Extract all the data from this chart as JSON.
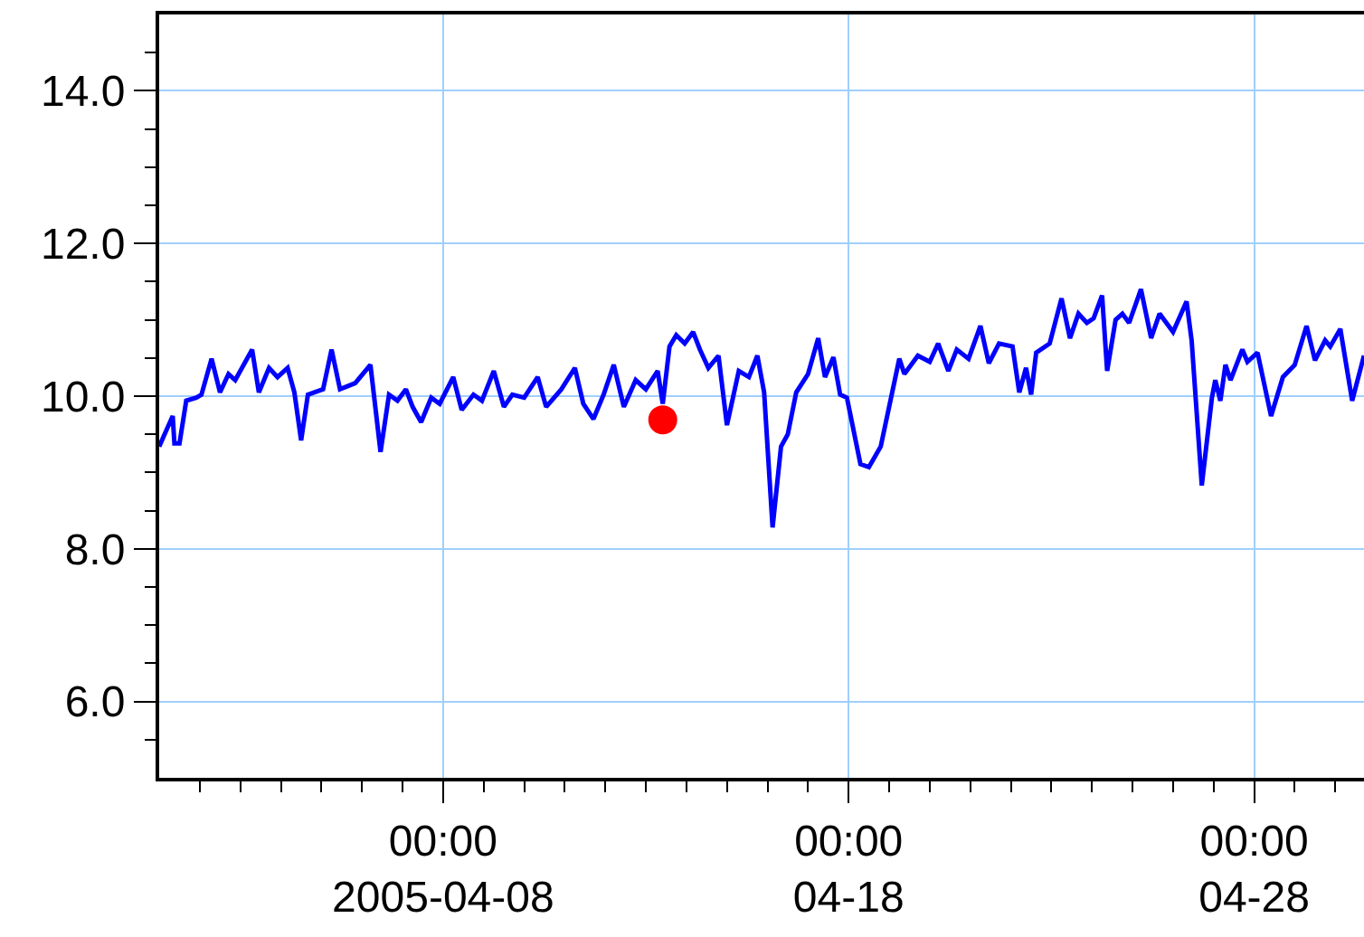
{
  "chart_data": {
    "type": "line",
    "xlim": [
      "2005-04-01T00:00",
      "2005-04-30T17:00"
    ],
    "ylim": [
      5.0,
      15.0
    ],
    "xticks": [
      {
        "value": "2005-04-02",
        "label": null
      },
      {
        "value": "2005-04-03",
        "label": null
      },
      {
        "value": "2005-04-04",
        "label": null
      },
      {
        "value": "2005-04-05",
        "label": null
      },
      {
        "value": "2005-04-06",
        "label": null
      },
      {
        "value": "2005-04-07",
        "label": null
      },
      {
        "value": "2005-04-08",
        "label": "00:00\n2005-04-08"
      },
      {
        "value": "2005-04-09",
        "label": null
      },
      {
        "value": "2005-04-10",
        "label": null
      },
      {
        "value": "2005-04-11",
        "label": null
      },
      {
        "value": "2005-04-12",
        "label": null
      },
      {
        "value": "2005-04-13",
        "label": null
      },
      {
        "value": "2005-04-14",
        "label": null
      },
      {
        "value": "2005-04-15",
        "label": null
      },
      {
        "value": "2005-04-16",
        "label": null
      },
      {
        "value": "2005-04-17",
        "label": null
      },
      {
        "value": "2005-04-18",
        "label": "00:00\n04-18"
      },
      {
        "value": "2005-04-19",
        "label": null
      },
      {
        "value": "2005-04-20",
        "label": null
      },
      {
        "value": "2005-04-21",
        "label": null
      },
      {
        "value": "2005-04-22",
        "label": null
      },
      {
        "value": "2005-04-23",
        "label": null
      },
      {
        "value": "2005-04-24",
        "label": null
      },
      {
        "value": "2005-04-25",
        "label": null
      },
      {
        "value": "2005-04-26",
        "label": null
      },
      {
        "value": "2005-04-27",
        "label": null
      },
      {
        "value": "2005-04-28",
        "label": "00:00\n04-28"
      },
      {
        "value": "2005-04-29",
        "label": null
      },
      {
        "value": "2005-04-30",
        "label": null
      }
    ],
    "yticks": [
      {
        "value": 5.5,
        "label": null
      },
      {
        "value": 6.0,
        "label": "6.0"
      },
      {
        "value": 6.5,
        "label": null
      },
      {
        "value": 7.0,
        "label": null
      },
      {
        "value": 7.5,
        "label": null
      },
      {
        "value": 8.0,
        "label": "8.0"
      },
      {
        "value": 8.5,
        "label": null
      },
      {
        "value": 9.0,
        "label": null
      },
      {
        "value": 9.5,
        "label": null
      },
      {
        "value": 10.0,
        "label": "10.0"
      },
      {
        "value": 10.5,
        "label": null
      },
      {
        "value": 11.0,
        "label": null
      },
      {
        "value": 11.5,
        "label": null
      },
      {
        "value": 12.0,
        "label": "12.0"
      },
      {
        "value": 12.5,
        "label": null
      },
      {
        "value": 13.0,
        "label": null
      },
      {
        "value": 13.5,
        "label": null
      },
      {
        "value": 14.0,
        "label": "14.0"
      },
      {
        "value": 14.5,
        "label": null
      }
    ],
    "grid": true,
    "series": [
      {
        "color": "#0000ff",
        "marker": "none",
        "line_style": "solid",
        "x": [
          "2005-04-01T00:00",
          "2005-04-01T04:00",
          "2005-04-01T08:00",
          "2005-04-01T09:00",
          "2005-04-01T12:00",
          "2005-04-01T16:00",
          "2005-04-01T22:00",
          "2005-04-02T01:00",
          "2005-04-02T07:00",
          "2005-04-02T12:00",
          "2005-04-02T17:00",
          "2005-04-02T21:00",
          "2005-04-03T07:00",
          "2005-04-03T11:00",
          "2005-04-03T17:00",
          "2005-04-03T22:00",
          "2005-04-04T04:00",
          "2005-04-04T08:00",
          "2005-04-04T12:00",
          "2005-04-04T16:00",
          "2005-04-05T01:00",
          "2005-04-05T06:00",
          "2005-04-05T11:00",
          "2005-04-05T20:00",
          "2005-04-06T05:00",
          "2005-04-06T11:00",
          "2005-04-06T16:00",
          "2005-04-06T21:00",
          "2005-04-07T02:00",
          "2005-04-07T06:00",
          "2005-04-07T11:00",
          "2005-04-07T17:00",
          "2005-04-07T22:00",
          "2005-04-08T06:00",
          "2005-04-08T11:00",
          "2005-04-08T18:00",
          "2005-04-08T23:00",
          "2005-04-09T06:00",
          "2005-04-09T12:00",
          "2005-04-09T17:00",
          "2005-04-10T00:00",
          "2005-04-10T08:00",
          "2005-04-10T13:00",
          "2005-04-10T22:00",
          "2005-04-11T06:00",
          "2005-04-11T11:00",
          "2005-04-11T17:00",
          "2005-04-11T23:00",
          "2005-04-12T05:00",
          "2005-04-12T11:00",
          "2005-04-12T18:00",
          "2005-04-13T00:00",
          "2005-04-13T07:00",
          "2005-04-13T10:00",
          "2005-04-13T14:00",
          "2005-04-13T18:00",
          "2005-04-13T23:00",
          "2005-04-14T04:00",
          "2005-04-14T08:00",
          "2005-04-14T13:00",
          "2005-04-14T19:00",
          "2005-04-15T00:00",
          "2005-04-15T07:00",
          "2005-04-15T13:00",
          "2005-04-15T18:00",
          "2005-04-15T22:00",
          "2005-04-16T03:00",
          "2005-04-16T08:00",
          "2005-04-16T12:00",
          "2005-04-16T17:00",
          "2005-04-17T00:00",
          "2005-04-17T06:00",
          "2005-04-17T10:00",
          "2005-04-17T15:00",
          "2005-04-17T19:00",
          "2005-04-17T23:00",
          "2005-04-18T07:00",
          "2005-04-18T12:00",
          "2005-04-18T19:00",
          "2005-04-19T06:00",
          "2005-04-19T09:00",
          "2005-04-19T17:00",
          "2005-04-20T00:00",
          "2005-04-20T05:00",
          "2005-04-20T11:00",
          "2005-04-20T16:00",
          "2005-04-20T23:00",
          "2005-04-21T06:00",
          "2005-04-21T11:00",
          "2005-04-21T17:00",
          "2005-04-22T01:00",
          "2005-04-22T05:00",
          "2005-04-22T09:00",
          "2005-04-22T12:00",
          "2005-04-22T15:00",
          "2005-04-22T23:00",
          "2005-04-23T06:00",
          "2005-04-23T11:00",
          "2005-04-23T16:00",
          "2005-04-23T21:00",
          "2005-04-24T01:00",
          "2005-04-24T06:00",
          "2005-04-24T09:00",
          "2005-04-24T14:00",
          "2005-04-24T18:00",
          "2005-04-24T22:00",
          "2005-04-25T05:00",
          "2005-04-25T11:00",
          "2005-04-25T16:00",
          "2005-04-26T00:00",
          "2005-04-26T08:00",
          "2005-04-26T11:00",
          "2005-04-26T17:00",
          "2005-04-26T23:00",
          "2005-04-27T01:00",
          "2005-04-27T04:00",
          "2005-04-27T07:00",
          "2005-04-27T10:00",
          "2005-04-27T17:00",
          "2005-04-27T20:00",
          "2005-04-28T02:00",
          "2005-04-28T10:00",
          "2005-04-28T17:00",
          "2005-04-29T00:00",
          "2005-04-29T07:00",
          "2005-04-29T12:00",
          "2005-04-29T18:00",
          "2005-04-29T21:00",
          "2005-04-30T03:00",
          "2005-04-30T10:00",
          "2005-04-30T17:00"
        ],
        "values": [
          9.34,
          9.54,
          9.74,
          9.38,
          9.38,
          9.94,
          9.98,
          10.02,
          10.49,
          10.05,
          10.29,
          10.21,
          10.61,
          10.05,
          10.37,
          10.25,
          10.37,
          10.05,
          9.42,
          10.02,
          10.09,
          10.61,
          10.09,
          10.17,
          10.41,
          9.27,
          10.02,
          9.94,
          10.09,
          9.86,
          9.66,
          9.98,
          9.9,
          10.25,
          9.82,
          10.02,
          9.94,
          10.33,
          9.86,
          10.02,
          9.98,
          10.25,
          9.86,
          10.09,
          10.37,
          9.9,
          9.7,
          10.02,
          10.41,
          9.86,
          10.21,
          10.09,
          10.33,
          9.9,
          10.65,
          10.8,
          10.69,
          10.84,
          10.61,
          10.37,
          10.53,
          9.62,
          10.33,
          10.25,
          10.53,
          10.05,
          8.28,
          9.34,
          9.5,
          10.05,
          10.29,
          10.76,
          10.25,
          10.51,
          10.02,
          9.98,
          9.11,
          9.07,
          9.34,
          10.49,
          10.29,
          10.53,
          10.45,
          10.69,
          10.33,
          10.61,
          10.49,
          10.92,
          10.43,
          10.69,
          10.65,
          10.05,
          10.37,
          10.02,
          10.57,
          10.69,
          11.28,
          10.76,
          11.08,
          10.96,
          11.02,
          11.32,
          10.33,
          11.0,
          11.08,
          10.96,
          11.4,
          10.76,
          11.08,
          10.84,
          11.24,
          10.73,
          8.83,
          9.98,
          10.21,
          9.94,
          10.41,
          10.21,
          10.61,
          10.45,
          10.57,
          9.74,
          10.25,
          10.41,
          10.92,
          10.47,
          10.73,
          10.65,
          10.88,
          9.94,
          10.53
        ]
      },
      {
        "type": "scatter",
        "color": "#ff0000",
        "marker": "circle",
        "x": [
          "2005-04-13T10:00"
        ],
        "values": [
          9.69
        ]
      }
    ]
  }
}
